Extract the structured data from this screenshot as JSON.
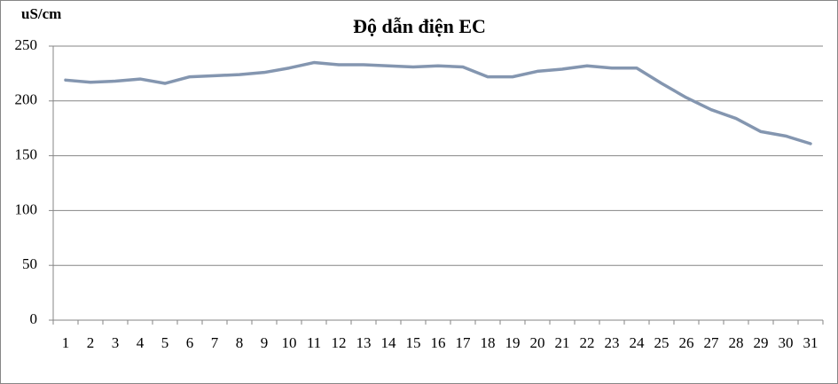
{
  "chart_data": {
    "type": "line",
    "title": "Độ dẫn  điện EC",
    "y_label": "uS/cm",
    "categories": [
      "1",
      "2",
      "3",
      "4",
      "5",
      "6",
      "7",
      "8",
      "9",
      "10",
      "11",
      "12",
      "13",
      "14",
      "15",
      "16",
      "17",
      "18",
      "19",
      "20",
      "21",
      "22",
      "23",
      "24",
      "25",
      "26",
      "27",
      "28",
      "29",
      "30",
      "31"
    ],
    "series": [
      {
        "color": "#8496b0",
        "values": [
          219,
          217,
          218,
          220,
          216,
          222,
          223,
          224,
          226,
          230,
          235,
          233,
          233,
          232,
          231,
          232,
          231,
          222,
          222,
          227,
          229,
          232,
          230,
          230,
          216,
          203,
          192,
          184,
          172,
          168,
          161
        ]
      }
    ],
    "ylim": [
      0,
      250
    ],
    "yticks": [
      0,
      50,
      100,
      150,
      200,
      250
    ],
    "grid": true
  }
}
